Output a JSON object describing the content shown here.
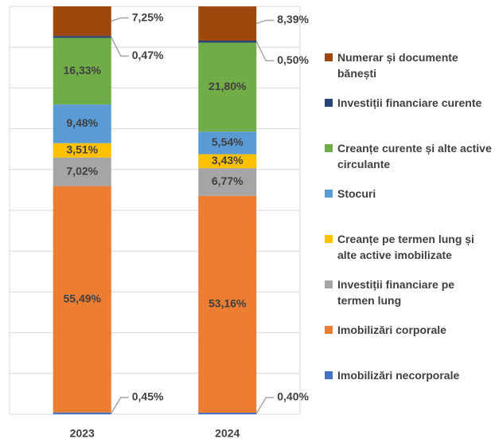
{
  "chart_data": {
    "type": "stacked_bar",
    "categories": [
      "2023",
      "2024"
    ],
    "series": [
      {
        "name": "Imobilizări necorporale",
        "color": "#4472c4",
        "values": [
          0.45,
          0.4
        ],
        "value_labels": [
          "0,45%",
          "0,40%"
        ]
      },
      {
        "name": "Imobilizări corporale",
        "color": "#ed7d31",
        "values": [
          55.49,
          53.16
        ],
        "value_labels": [
          "55,49%",
          "53,16%"
        ]
      },
      {
        "name": "Investiții financiare pe termen lung",
        "color": "#a5a5a5",
        "values": [
          7.02,
          6.77
        ],
        "value_labels": [
          "7,02%",
          "6,77%"
        ]
      },
      {
        "name": "Creanțe pe termen lung și alte active imobilizate",
        "color": "#ffc000",
        "values": [
          3.51,
          3.43
        ],
        "value_labels": [
          "3,51%",
          "3,43%"
        ]
      },
      {
        "name": "Stocuri",
        "color": "#5b9bd5",
        "values": [
          9.48,
          5.54
        ],
        "value_labels": [
          "9,48%",
          "5,54%"
        ]
      },
      {
        "name": "Creanțe curente și alte active circulante",
        "color": "#70ad47",
        "values": [
          16.33,
          21.8
        ],
        "value_labels": [
          "16,33%",
          "21,80%"
        ]
      },
      {
        "name": "Investiții financiare curente",
        "color": "#264478",
        "values": [
          0.47,
          0.5
        ],
        "value_labels": [
          "0,47%",
          "0,50%"
        ]
      },
      {
        "name": "Numerar și documente bănești",
        "color": "#9e480e",
        "values": [
          7.25,
          8.39
        ],
        "value_labels": [
          "7,25%",
          "8,39%"
        ]
      }
    ],
    "ylim": [
      0,
      100
    ],
    "yticks": [
      0,
      10,
      20,
      30,
      40,
      50,
      60,
      70,
      80,
      90,
      100
    ],
    "grid": true,
    "legend": "right"
  }
}
